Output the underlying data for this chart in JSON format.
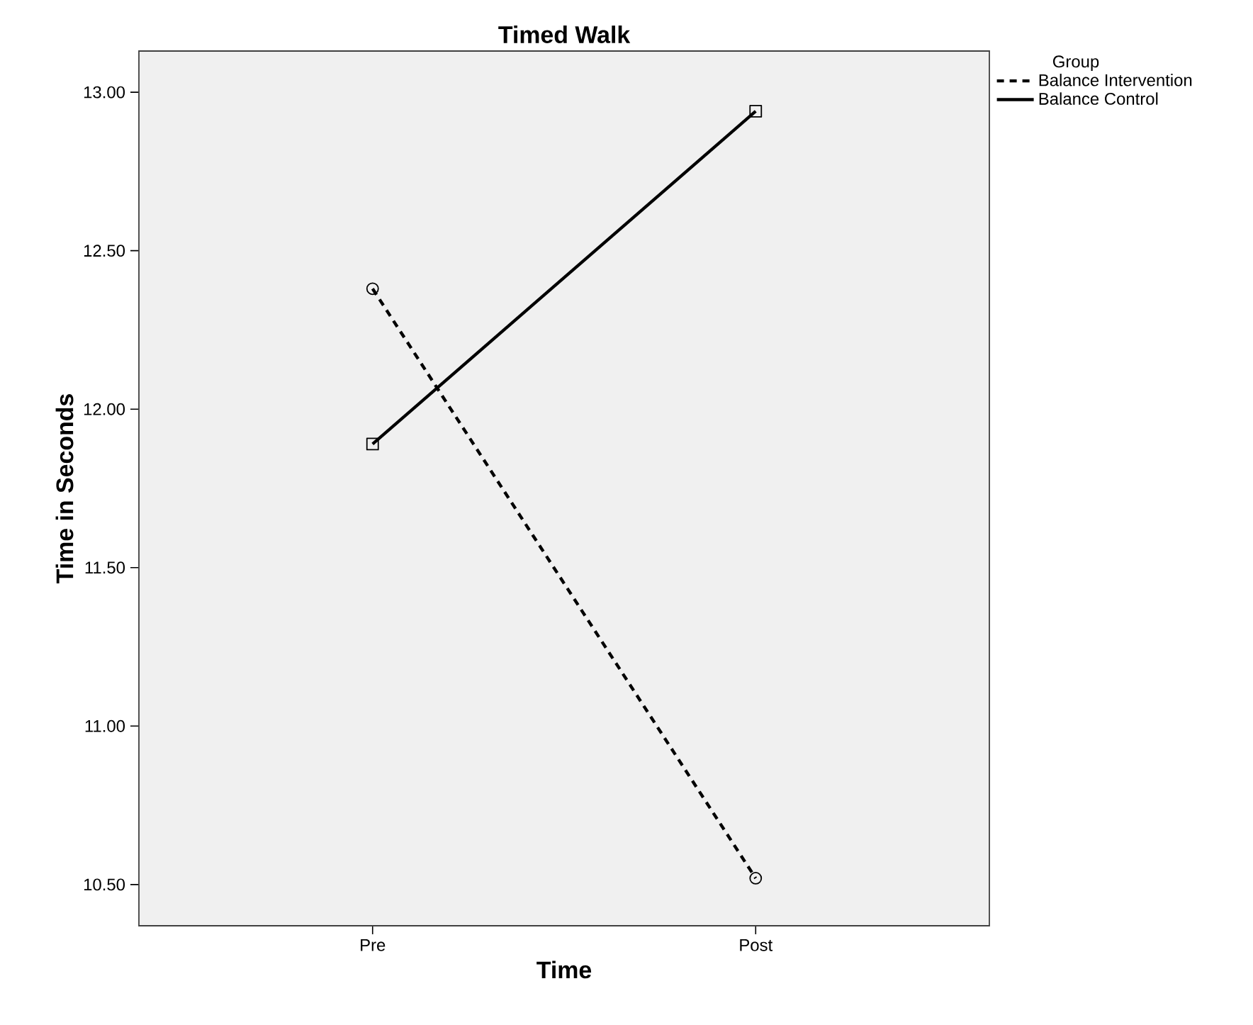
{
  "chart_data": {
    "type": "line",
    "title": "Timed Walk",
    "xlabel": "Time",
    "ylabel": "Time in Seconds",
    "legend_title": "Group",
    "categories": [
      "Pre",
      "Post"
    ],
    "series": [
      {
        "name": "Balance Intervention",
        "color": "#000000",
        "values": [
          12.38,
          10.52
        ],
        "line_style": "dashed",
        "marker": "circle"
      },
      {
        "name": "Balance Control",
        "color": "#000000",
        "values": [
          11.89,
          12.94
        ],
        "line_style": "solid",
        "marker": "square"
      }
    ],
    "ylim": [
      10.37,
      13.13
    ],
    "yticks": [
      {
        "value": 10.5,
        "label": "10.50"
      },
      {
        "value": 11,
        "label": "11.00"
      },
      {
        "value": 11.5,
        "label": "11.50"
      },
      {
        "value": 12,
        "label": "12.00"
      },
      {
        "value": 12.5,
        "label": "12.50"
      },
      {
        "value": 13,
        "label": "13.00"
      }
    ],
    "grid": false,
    "legend": "top right"
  }
}
